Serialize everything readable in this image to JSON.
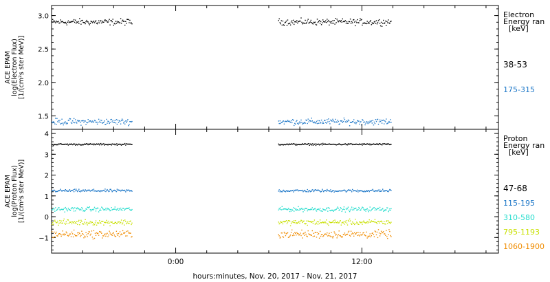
{
  "chart_data": [
    {
      "type": "scatter",
      "panel": "electron",
      "ylabel_lines": [
        "ACE EPAM",
        "log(Electron Flux)",
        "[1/(cm²s ster MeV)]"
      ],
      "yticks": [
        "1.5",
        "2.0",
        "2.5",
        "3.0"
      ],
      "ylim": [
        1.3,
        3.15
      ],
      "legend_title_lines": [
        "Electron",
        "Energy ran",
        "[keV]"
      ],
      "series": [
        {
          "name": "38-53",
          "color": "#000000",
          "level": 2.91,
          "spread": 0.035,
          "values_summary": "≈2.9 ± 0.05"
        },
        {
          "name": "175-315",
          "color": "#1f78c8",
          "level": 1.42,
          "spread": 0.035,
          "values_summary": "≈1.42 ± 0.06"
        }
      ]
    },
    {
      "type": "scatter",
      "panel": "proton",
      "ylabel_lines": [
        "ACE EPAM",
        "log(Proton Flux)",
        "[1/(cm²s ster MeV)]"
      ],
      "yticks": [
        "−1",
        "0",
        "1",
        "2",
        "3",
        "4"
      ],
      "ylim": [
        -1.75,
        4.2
      ],
      "legend_title_lines": [
        "Proton",
        "Energy ran",
        "[keV]"
      ],
      "series": [
        {
          "name": "47-68",
          "color": "#000000",
          "level": 3.5,
          "spread": 0.03
        },
        {
          "name": "115-195",
          "color": "#1f78c8",
          "level": 1.27,
          "spread": 0.05
        },
        {
          "name": "310-580",
          "color": "#22dccc",
          "level": 0.38,
          "spread": 0.08
        },
        {
          "name": "795-1193",
          "color": "#c8e000",
          "level": -0.25,
          "spread": 0.1
        },
        {
          "name": "1060-1900",
          "color": "#f08c00",
          "level": -0.82,
          "spread": 0.14
        }
      ]
    }
  ],
  "x_axis": {
    "ticks": [
      "0:00",
      "12:00"
    ],
    "xlabel": "hours:minutes, Nov. 20, 2017 - Nov. 21, 2017",
    "range_hours": [
      -8.0,
      20.8
    ],
    "tick_hours": [
      0,
      12
    ],
    "data_segments_hours": [
      [
        -8.0,
        -2.8
      ],
      [
        6.6,
        13.9
      ]
    ]
  }
}
